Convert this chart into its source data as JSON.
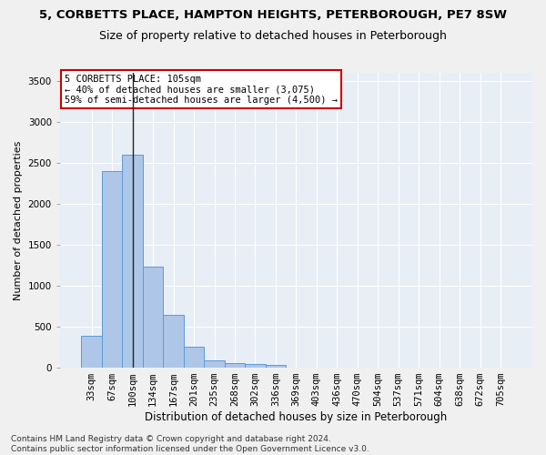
{
  "title1": "5, CORBETTS PLACE, HAMPTON HEIGHTS, PETERBOROUGH, PE7 8SW",
  "title2": "Size of property relative to detached houses in Peterborough",
  "xlabel": "Distribution of detached houses by size in Peterborough",
  "ylabel": "Number of detached properties",
  "categories": [
    "33sqm",
    "67sqm",
    "100sqm",
    "134sqm",
    "167sqm",
    "201sqm",
    "235sqm",
    "268sqm",
    "302sqm",
    "336sqm",
    "369sqm",
    "403sqm",
    "436sqm",
    "470sqm",
    "504sqm",
    "537sqm",
    "571sqm",
    "604sqm",
    "638sqm",
    "672sqm",
    "705sqm"
  ],
  "values": [
    390,
    2400,
    2600,
    1230,
    640,
    255,
    95,
    55,
    50,
    35,
    0,
    0,
    0,
    0,
    0,
    0,
    0,
    0,
    0,
    0,
    0
  ],
  "bar_color": "#aec6e8",
  "bar_edge_color": "#5b9bd5",
  "vline_x": 2,
  "vline_color": "#222222",
  "annotation_text": "5 CORBETTS PLACE: 105sqm\n← 40% of detached houses are smaller (3,075)\n59% of semi-detached houses are larger (4,500) →",
  "annotation_box_color": "#ffffff",
  "annotation_box_edge_color": "#cc0000",
  "ylim": [
    0,
    3600
  ],
  "yticks": [
    0,
    500,
    1000,
    1500,
    2000,
    2500,
    3000,
    3500
  ],
  "background_color": "#e8eef6",
  "grid_color": "#ffffff",
  "footnote": "Contains HM Land Registry data © Crown copyright and database right 2024.\nContains public sector information licensed under the Open Government Licence v3.0.",
  "title1_fontsize": 9.5,
  "title2_fontsize": 9,
  "xlabel_fontsize": 8.5,
  "ylabel_fontsize": 8,
  "tick_fontsize": 7.5,
  "annotation_fontsize": 7.5,
  "footnote_fontsize": 6.5
}
